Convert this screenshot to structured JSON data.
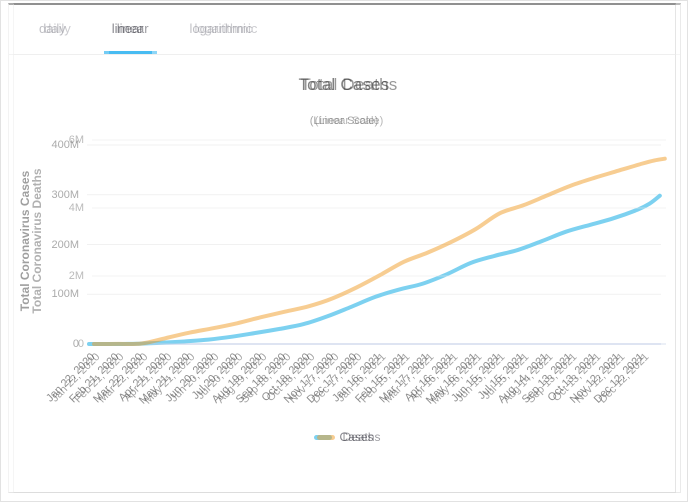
{
  "window": {
    "background": "#ffffff",
    "accent": "#1faef0"
  },
  "tabs": [
    {
      "label": "daily",
      "active": false
    },
    {
      "label": "linear",
      "active": true
    },
    {
      "label": "logarithmic",
      "active": false
    }
  ],
  "x_axis": {
    "labels": [
      "Jan 22, 2020",
      "Feb 21, 2020",
      "Mar 22, 2020",
      "Apr 21, 2020",
      "May 21, 2020",
      "Jun 20, 2020",
      "Jul 20, 2020",
      "Aug 19, 2020",
      "Sep 18, 2020",
      "Oct 18, 2020",
      "Nov 17, 2020",
      "Dec 17, 2020",
      "Jan 16, 2021",
      "Feb 15, 2021",
      "Mar 17, 2021",
      "Apr 16, 2021",
      "May 16, 2021",
      "Jun 15, 2021",
      "Jul 15, 2021",
      "Aug 14, 2021",
      "Sep 13, 2021",
      "Oct 13, 2021",
      "Nov 12, 2021",
      "Dec 12, 2021"
    ],
    "days": [
      0,
      30,
      60,
      90,
      120,
      150,
      180,
      210,
      240,
      270,
      300,
      330,
      360,
      390,
      420,
      450,
      480,
      510,
      540,
      570,
      600,
      630,
      660,
      690
    ]
  },
  "chart_data": [
    {
      "type": "line",
      "title": "Total Cases",
      "subtitle": "(Linear Scale)",
      "y_axis_title": "Total Coronavirus Cases",
      "legend_label": "Cases",
      "line_color": "#2fb5e8",
      "grid": true,
      "legend_position": "bottom",
      "y_max_m": 400,
      "y_ticks": [
        {
          "label": "0",
          "value_m": 0
        },
        {
          "label": "100M",
          "value_m": 100
        },
        {
          "label": "200M",
          "value_m": 200
        },
        {
          "label": "300M",
          "value_m": 300
        },
        {
          "label": "400M",
          "value_m": 400
        }
      ],
      "series": {
        "name": "Cases",
        "days": [
          0,
          30,
          60,
          90,
          120,
          150,
          180,
          210,
          240,
          270,
          300,
          330,
          360,
          390,
          420,
          450,
          480,
          510,
          540,
          570,
          600,
          630,
          660,
          690,
          705,
          718
        ],
        "values_m": [
          0.0006,
          0.077,
          0.33,
          2.5,
          5.1,
          8.8,
          14.7,
          22.3,
          30.4,
          39.9,
          55.6,
          74.8,
          94.7,
          109.4,
          121.5,
          140.1,
          162.8,
          177.0,
          189.3,
          207.0,
          225.7,
          239.4,
          252.8,
          270.0,
          282.0,
          298.0
        ]
      }
    },
    {
      "type": "line",
      "title": "Total Deaths",
      "subtitle": "(Linear Scale)",
      "y_axis_title": "Total Coronavirus Deaths",
      "legend_label": "Deaths",
      "line_color": "#f09c28",
      "grid": true,
      "legend_position": "bottom",
      "y_max_m": 6,
      "y_ticks": [
        {
          "label": "0",
          "value_m": 0
        },
        {
          "label": "2M",
          "value_m": 2
        },
        {
          "label": "4M",
          "value_m": 4
        },
        {
          "label": "6M",
          "value_m": 6
        }
      ],
      "series": {
        "name": "Deaths",
        "days": [
          0,
          30,
          60,
          90,
          120,
          150,
          180,
          210,
          240,
          270,
          300,
          330,
          360,
          390,
          420,
          450,
          480,
          510,
          540,
          570,
          600,
          630,
          660,
          690,
          705,
          718
        ],
        "values_m": [
          2e-05,
          0.0022,
          0.0144,
          0.172,
          0.333,
          0.464,
          0.61,
          0.787,
          0.951,
          1.11,
          1.34,
          1.66,
          2.03,
          2.42,
          2.69,
          3.01,
          3.38,
          3.84,
          4.08,
          4.37,
          4.66,
          4.89,
          5.1,
          5.31,
          5.4,
          5.45
        ]
      }
    }
  ]
}
